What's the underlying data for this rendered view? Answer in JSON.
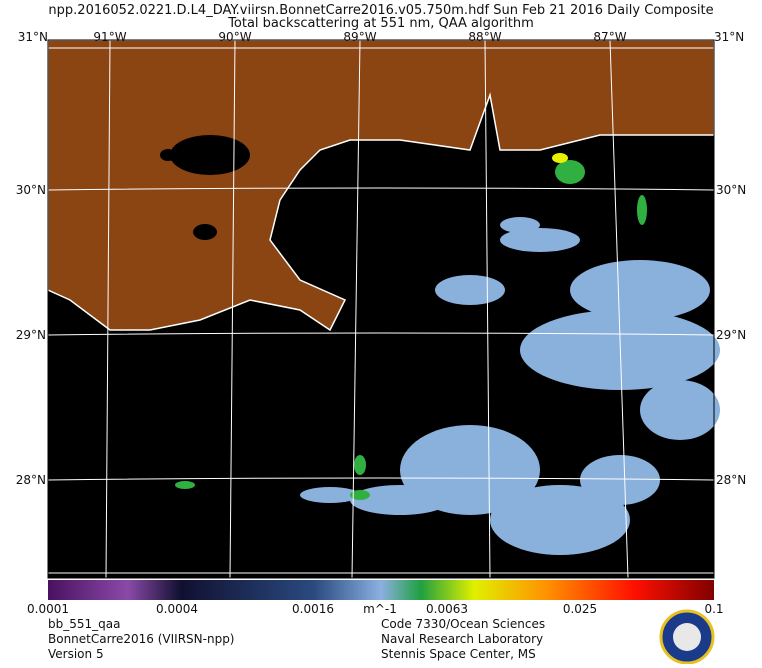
{
  "header": {
    "title": "npp.2016052.0221.D.L4_DAY.viirsn.BonnetCarre2016.v05.750m.hdf     Sun Feb 21 2016 Daily Composite",
    "subtitle": "Total backscattering at 551 nm, QAA algorithm"
  },
  "map": {
    "top_labels": [
      "31°N",
      "91°W",
      "90°W",
      "89°W",
      "88°W",
      "87°W",
      "31°N"
    ],
    "left_labels": [
      "30°N",
      "29°N",
      "28°N"
    ],
    "right_labels": [
      "30°N",
      "29°N",
      "28°N"
    ]
  },
  "colorbar": {
    "labels": [
      "0.0001",
      "0.0004",
      "0.0016",
      "m^-1",
      "0.0063",
      "0.025",
      "0.1"
    ]
  },
  "footer": {
    "left": [
      "bb_551_qaa",
      "BonnetCarre2016 (VIIRSN-npp)",
      "Version 5"
    ],
    "right": [
      "Code 7330/Ocean Sciences",
      "Naval Research Laboratory",
      "Stennis Space Center, MS"
    ]
  }
}
